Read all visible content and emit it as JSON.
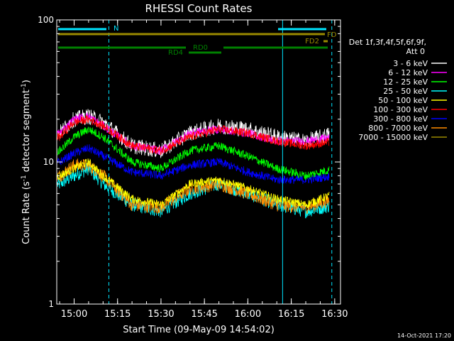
{
  "chart_data": {
    "type": "line",
    "title": "RHESSI Count Rates",
    "xlabel": "Start Time (09-May-09 14:54:02)",
    "ylabel_main": "Count Rate (s",
    "ylabel_sup": "-1",
    "ylabel_tail": " detector segment",
    "ylabel_end": ")",
    "y_scale": "log",
    "ylim": [
      1,
      100
    ],
    "xlim": [
      "14:54",
      "16:32"
    ],
    "x_ticks": [
      "15:00",
      "15:15",
      "15:30",
      "15:45",
      "16:00",
      "16:15",
      "16:30"
    ],
    "y_ticks": [
      "1",
      "10",
      "100"
    ],
    "timestamp": "14-Oct-2021 17:20",
    "legend": {
      "header1": "Det 1f,3f,4f,5f,6f,9f,",
      "header2": "Att 0",
      "placement": "right"
    },
    "flag_labels": {
      "N": "N",
      "FD": "FD",
      "FD2": "FD2",
      "RD0": "RD0",
      "RD4": "RD4"
    },
    "vertical_markers": [
      "14:54",
      "15:12",
      "16:12",
      "16:29"
    ],
    "series": [
      {
        "name": "3 - 6 keV",
        "color": "#ffffff",
        "x": [
          "14:55",
          "15:00",
          "15:05",
          "15:10",
          "15:20",
          "15:30",
          "15:40",
          "15:50",
          "16:00",
          "16:10",
          "16:20",
          "16:30"
        ],
        "values": [
          16,
          20,
          21,
          19,
          13,
          12,
          16,
          18,
          17,
          15,
          14,
          16
        ]
      },
      {
        "name": "6 - 12 keV",
        "color": "#ff00ff",
        "x": [
          "14:55",
          "15:00",
          "15:05",
          "15:10",
          "15:20",
          "15:30",
          "15:40",
          "15:50",
          "16:00",
          "16:10",
          "16:20",
          "16:30"
        ],
        "values": [
          16,
          20,
          21,
          18,
          13,
          12,
          16,
          17,
          16,
          14,
          14,
          15
        ]
      },
      {
        "name": "12 - 25 keV",
        "color": "#00ff00",
        "x": [
          "14:55",
          "15:00",
          "15:05",
          "15:10",
          "15:20",
          "15:30",
          "15:40",
          "15:50",
          "16:00",
          "16:10",
          "16:20",
          "16:30"
        ],
        "values": [
          12,
          15,
          17,
          15,
          10,
          9,
          12,
          13,
          11,
          9,
          8,
          9
        ]
      },
      {
        "name": "25 - 50 keV",
        "color": "#00ffff",
        "x": [
          "14:55",
          "15:00",
          "15:05",
          "15:10",
          "15:20",
          "15:30",
          "15:40",
          "15:50",
          "16:00",
          "16:10",
          "16:20",
          "16:30"
        ],
        "values": [
          7,
          8,
          9,
          7,
          5,
          4.5,
          6,
          7,
          6,
          5,
          4.5,
          5
        ]
      },
      {
        "name": "50 - 100 keV",
        "color": "#ffff00",
        "x": [
          "14:55",
          "15:00",
          "15:05",
          "15:10",
          "15:20",
          "15:30",
          "15:40",
          "15:50",
          "16:00",
          "16:10",
          "16:20",
          "16:30"
        ],
        "values": [
          8,
          9,
          10,
          8,
          5.5,
          5,
          7,
          7.5,
          6.5,
          5.5,
          5,
          6
        ]
      },
      {
        "name": "100 - 300 keV",
        "color": "#ff0000",
        "x": [
          "14:55",
          "15:00",
          "15:05",
          "15:10",
          "15:20",
          "15:30",
          "15:40",
          "15:50",
          "16:00",
          "16:10",
          "16:20",
          "16:30"
        ],
        "values": [
          15,
          19,
          20,
          18,
          13,
          12,
          15,
          17,
          16,
          14,
          13,
          14
        ]
      },
      {
        "name": "300 - 800 keV",
        "color": "#0000ff",
        "x": [
          "14:55",
          "15:00",
          "15:05",
          "15:10",
          "15:20",
          "15:30",
          "15:40",
          "15:50",
          "16:00",
          "16:10",
          "16:20",
          "16:30"
        ],
        "values": [
          10,
          11.5,
          12.5,
          11,
          8.5,
          8,
          9.5,
          10,
          8.5,
          7.5,
          7.5,
          8
        ]
      },
      {
        "name": "800 - 7000 keV",
        "color": "#ff8c00",
        "x": [
          "14:55",
          "15:00",
          "15:05",
          "15:10",
          "15:20",
          "15:30",
          "15:40",
          "15:50",
          "16:00",
          "16:10",
          "16:20",
          "16:30"
        ],
        "values": [
          8,
          9.5,
          9.5,
          8,
          5,
          4.8,
          6.5,
          7,
          6,
          5,
          4.8,
          5.5
        ]
      },
      {
        "name": "7000 - 15000 keV",
        "color": "#9a8a00",
        "x": [],
        "values": []
      }
    ]
  }
}
